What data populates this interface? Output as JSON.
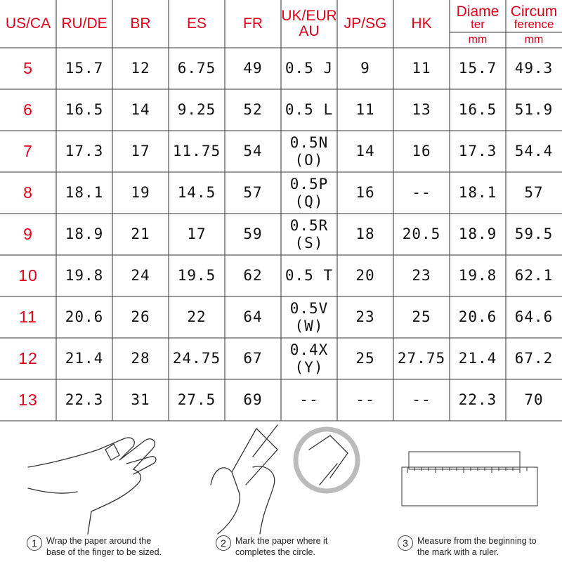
{
  "table": {
    "header": [
      [
        "US/CA"
      ],
      [
        "RU/DE"
      ],
      [
        "BR"
      ],
      [
        "ES"
      ],
      [
        "FR"
      ],
      [
        "UK/EUR",
        "AU"
      ],
      [
        "JP/SG"
      ],
      [
        "HK"
      ],
      [
        "Diame",
        "ter",
        "mm"
      ],
      [
        "Circum",
        "ference",
        "mm"
      ]
    ],
    "rows": [
      [
        [
          "5"
        ],
        [
          "15.7"
        ],
        [
          "12"
        ],
        [
          "6.75"
        ],
        [
          "49"
        ],
        [
          "0.5 J"
        ],
        [
          "9"
        ],
        [
          "11"
        ],
        [
          "15.7"
        ],
        [
          "49.3"
        ]
      ],
      [
        [
          "6"
        ],
        [
          "16.5"
        ],
        [
          "14"
        ],
        [
          "9.25"
        ],
        [
          "52"
        ],
        [
          "0.5 L"
        ],
        [
          "11"
        ],
        [
          "13"
        ],
        [
          "16.5"
        ],
        [
          "51.9"
        ]
      ],
      [
        [
          "7"
        ],
        [
          "17.3"
        ],
        [
          "17"
        ],
        [
          "11.75"
        ],
        [
          "54"
        ],
        [
          "0.5N",
          "(O)"
        ],
        [
          "14"
        ],
        [
          "16"
        ],
        [
          "17.3"
        ],
        [
          "54.4"
        ]
      ],
      [
        [
          "8"
        ],
        [
          "18.1"
        ],
        [
          "19"
        ],
        [
          "14.5"
        ],
        [
          "57"
        ],
        [
          "0.5P",
          "(Q)"
        ],
        [
          "16"
        ],
        [
          "--"
        ],
        [
          "18.1"
        ],
        [
          "57"
        ]
      ],
      [
        [
          "9"
        ],
        [
          "18.9"
        ],
        [
          "21"
        ],
        [
          "17"
        ],
        [
          "59"
        ],
        [
          "0.5R",
          "(S)"
        ],
        [
          "18"
        ],
        [
          "20.5"
        ],
        [
          "18.9"
        ],
        [
          "59.5"
        ]
      ],
      [
        [
          "10"
        ],
        [
          "19.8"
        ],
        [
          "24"
        ],
        [
          "19.5"
        ],
        [
          "62"
        ],
        [
          "0.5 T"
        ],
        [
          "20"
        ],
        [
          "23"
        ],
        [
          "19.8"
        ],
        [
          "62.1"
        ]
      ],
      [
        [
          "11"
        ],
        [
          "20.6"
        ],
        [
          "26"
        ],
        [
          "22"
        ],
        [
          "64"
        ],
        [
          "0.5V",
          "(W)"
        ],
        [
          "23"
        ],
        [
          "25"
        ],
        [
          "20.6"
        ],
        [
          "64.6"
        ]
      ],
      [
        [
          "12"
        ],
        [
          "21.4"
        ],
        [
          "28"
        ],
        [
          "24.75"
        ],
        [
          "67"
        ],
        [
          "0.4X",
          "(Y)"
        ],
        [
          "25"
        ],
        [
          "27.75"
        ],
        [
          "21.4"
        ],
        [
          "67.2"
        ]
      ],
      [
        [
          "13"
        ],
        [
          "22.3"
        ],
        [
          "31"
        ],
        [
          "27.5"
        ],
        [
          "69"
        ],
        [
          "--"
        ],
        [
          "--"
        ],
        [
          "--"
        ],
        [
          "22.3"
        ],
        [
          "70"
        ]
      ]
    ]
  },
  "steps": [
    {
      "number": "1",
      "text": [
        "Wrap the paper around the",
        "base of the finger to be sized."
      ]
    },
    {
      "number": "2",
      "text": [
        "Mark the paper where it",
        "completes the circle."
      ]
    },
    {
      "number": "3",
      "text": [
        "Measure from the beginning to",
        "the mark with a ruler."
      ]
    }
  ]
}
